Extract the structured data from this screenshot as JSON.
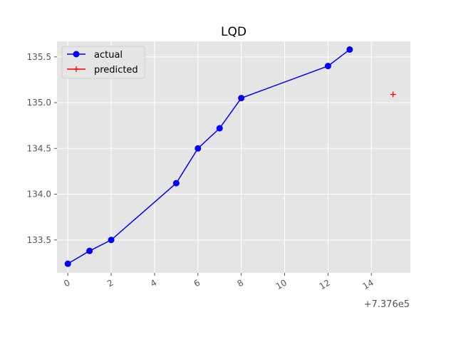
{
  "chart_data": {
    "type": "line",
    "title": "LQD",
    "xlabel": "",
    "ylabel": "",
    "x_offset_label": "+7.376e5",
    "xlim": [
      -0.5,
      15.8
    ],
    "ylim": [
      133.14,
      135.67
    ],
    "xticks": [
      0,
      2,
      4,
      6,
      8,
      10,
      12,
      14
    ],
    "yticks": [
      133.5,
      134.0,
      134.5,
      135.0,
      135.5
    ],
    "xtick_labels": [
      "0",
      "2",
      "4",
      "6",
      "8",
      "10",
      "12",
      "14"
    ],
    "ytick_labels": [
      "133.5",
      "134.0",
      "134.5",
      "135.0",
      "135.5"
    ],
    "grid": true,
    "legend_position": "top-left",
    "series": [
      {
        "name": "actual",
        "color": "#0000ff",
        "marker": "circle",
        "x": [
          0,
          1,
          2,
          5,
          6,
          7,
          8,
          12,
          13
        ],
        "y": [
          133.24,
          133.38,
          133.5,
          134.12,
          134.5,
          134.72,
          135.05,
          135.4,
          135.58
        ]
      },
      {
        "name": "predicted",
        "color": "#ff0000",
        "marker": "plus",
        "x": [
          15
        ],
        "y": [
          135.09
        ]
      }
    ]
  }
}
